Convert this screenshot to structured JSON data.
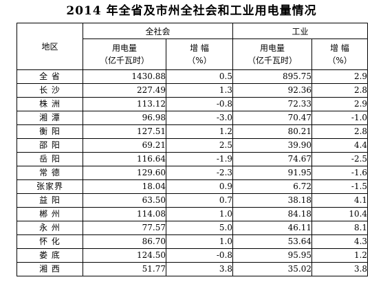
{
  "title": "2014 年全省及市州全社会和工业用电量情况",
  "header": {
    "region": "地区",
    "group_society": "全社会",
    "group_industry": "工业",
    "usage_line1": "用电量",
    "usage_line2": "（亿千瓦时）",
    "growth_line1": "增  幅",
    "growth_line2": "（%）"
  },
  "rows": [
    {
      "region": "全  省",
      "soc_usage": "1430.88",
      "soc_growth": "0.5",
      "ind_usage": "895.75",
      "ind_growth": "2.9"
    },
    {
      "region": "长  沙",
      "soc_usage": "227.49",
      "soc_growth": "1.3",
      "ind_usage": "92.36",
      "ind_growth": "2.8"
    },
    {
      "region": "株  洲",
      "soc_usage": "113.12",
      "soc_growth": "-0.8",
      "ind_usage": "72.33",
      "ind_growth": "2.9"
    },
    {
      "region": "湘  潭",
      "soc_usage": "96.98",
      "soc_growth": "-3.0",
      "ind_usage": "70.47",
      "ind_growth": "-1.0"
    },
    {
      "region": "衡  阳",
      "soc_usage": "127.51",
      "soc_growth": "1.2",
      "ind_usage": "80.21",
      "ind_growth": "2.8"
    },
    {
      "region": "邵  阳",
      "soc_usage": "69.21",
      "soc_growth": "2.5",
      "ind_usage": "39.90",
      "ind_growth": "4.4"
    },
    {
      "region": "岳  阳",
      "soc_usage": "116.64",
      "soc_growth": "-1.9",
      "ind_usage": "74.67",
      "ind_growth": "-2.5"
    },
    {
      "region": "常  德",
      "soc_usage": "129.60",
      "soc_growth": "-2.3",
      "ind_usage": "91.95",
      "ind_growth": "-1.6"
    },
    {
      "region": "张家界",
      "soc_usage": "18.04",
      "soc_growth": "0.9",
      "ind_usage": "6.72",
      "ind_growth": "-1.5"
    },
    {
      "region": "益  阳",
      "soc_usage": "63.50",
      "soc_growth": "0.7",
      "ind_usage": "38.18",
      "ind_growth": "4.1"
    },
    {
      "region": "郴  州",
      "soc_usage": "114.08",
      "soc_growth": "1.0",
      "ind_usage": "84.18",
      "ind_growth": "10.4"
    },
    {
      "region": "永  州",
      "soc_usage": "77.57",
      "soc_growth": "5.0",
      "ind_usage": "46.11",
      "ind_growth": "8.1"
    },
    {
      "region": "怀  化",
      "soc_usage": "86.70",
      "soc_growth": "1.0",
      "ind_usage": "53.64",
      "ind_growth": "4.3"
    },
    {
      "region": "娄  底",
      "soc_usage": "124.50",
      "soc_growth": "-0.8",
      "ind_usage": "95.95",
      "ind_growth": "1.2"
    },
    {
      "region": "湘  西",
      "soc_usage": "51.77",
      "soc_growth": "3.8",
      "ind_usage": "35.02",
      "ind_growth": "3.8"
    }
  ]
}
